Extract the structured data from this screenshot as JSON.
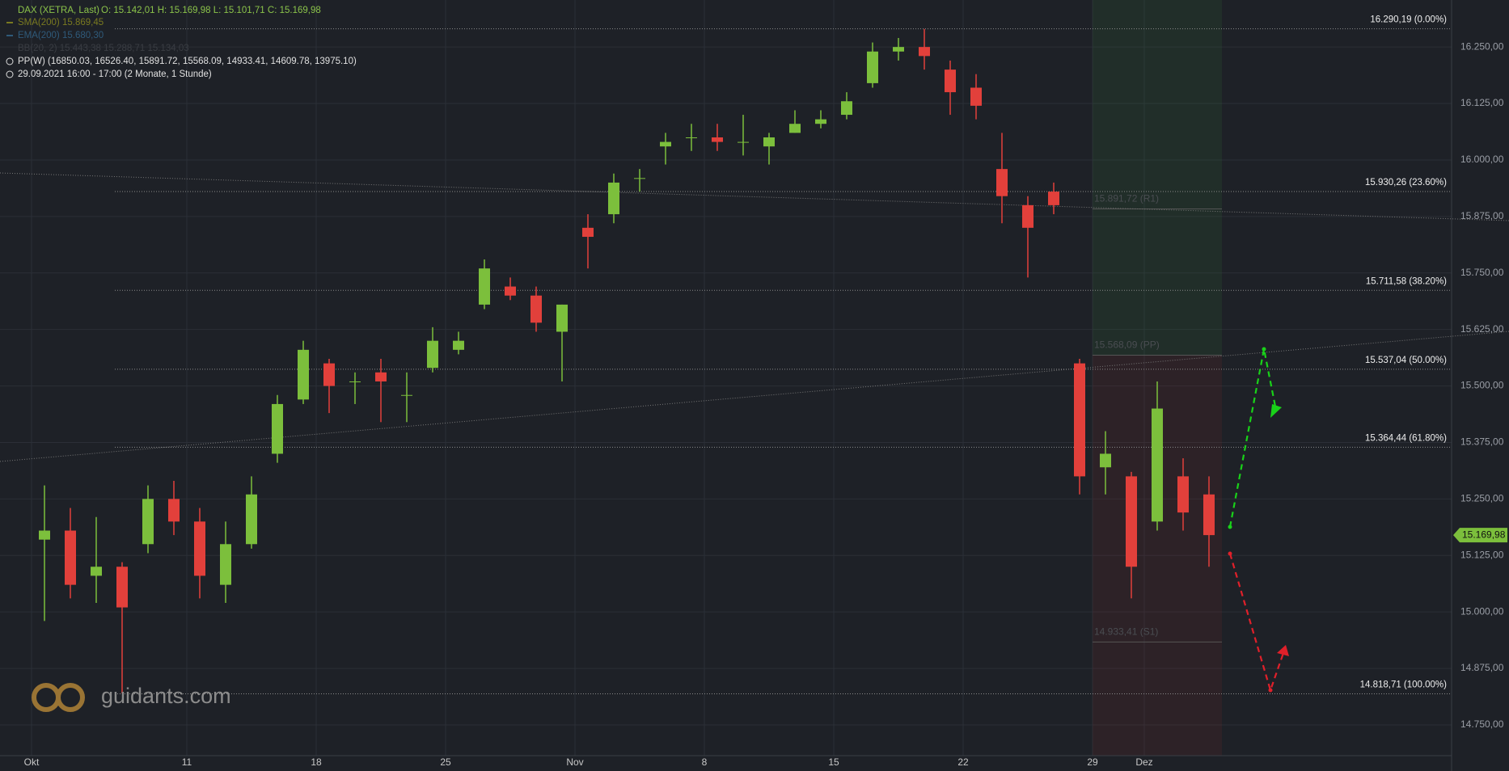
{
  "header": {
    "symbol": "DAX (XETRA, Last)",
    "ohlc": "O: 15.142,01   H: 15.169,98   L: 15.101,71   C: 15.169,98",
    "sma": "SMA(200)  15.869,45",
    "ema": "EMA(200)  15.680,30",
    "bb": "BB(20, 2)  15.443,38  15.288,71  15.134,03",
    "pp": "PP(W)  (16850.03, 16526.40, 15891.72, 15568.09, 14933.41, 14609.78, 13975.10)",
    "period": "29.09.2021 16:00 - 17:00   (2 Monate, 1 Stunde)"
  },
  "watermark": "guidants.com",
  "chart_data": {
    "type": "candlestick",
    "categories": [
      "2021-10-01",
      "2021-10-04",
      "2021-10-05",
      "2021-10-06",
      "2021-10-07",
      "2021-10-08",
      "2021-10-11",
      "2021-10-12",
      "2021-10-13",
      "2021-10-14",
      "2021-10-15",
      "2021-10-18",
      "2021-10-19",
      "2021-10-20",
      "2021-10-21",
      "2021-10-22",
      "2021-10-25",
      "2021-10-26",
      "2021-10-27",
      "2021-10-28",
      "2021-10-29",
      "2021-11-01",
      "2021-11-02",
      "2021-11-03",
      "2021-11-04",
      "2021-11-05",
      "2021-11-08",
      "2021-11-09",
      "2021-11-10",
      "2021-11-11",
      "2021-11-12",
      "2021-11-15",
      "2021-11-16",
      "2021-11-17",
      "2021-11-18",
      "2021-11-19",
      "2021-11-22",
      "2021-11-23",
      "2021-11-24",
      "2021-11-25",
      "2021-11-26",
      "2021-11-29",
      "2021-11-30",
      "2021-12-01",
      "2021-12-02",
      "2021-12-03"
    ],
    "open": [
      15160,
      15180,
      15080,
      15100,
      15150,
      15250,
      15200,
      15060,
      15150,
      15350,
      15470,
      15550,
      15510,
      15530,
      15480,
      15540,
      15580,
      15680,
      15720,
      15700,
      15620,
      15850,
      15880,
      15960,
      16030,
      16050,
      16050,
      16040,
      16030,
      16060,
      16080,
      16100,
      16170,
      16240,
      16250,
      16200,
      16160,
      15980,
      15900,
      15930,
      15550,
      15320,
      15300,
      15200,
      15300,
      15260
    ],
    "high": [
      15280,
      15230,
      15210,
      15110,
      15280,
      15290,
      15230,
      15200,
      15300,
      15480,
      15600,
      15560,
      15530,
      15560,
      15530,
      15630,
      15620,
      15780,
      15740,
      15720,
      15680,
      15880,
      15970,
      15980,
      16060,
      16080,
      16080,
      16100,
      16060,
      16110,
      16110,
      16150,
      16260,
      16270,
      16290,
      16220,
      16190,
      16060,
      15920,
      15950,
      15560,
      15400,
      15310,
      15510,
      15340,
      15300
    ],
    "low": [
      14980,
      15030,
      15020,
      14820,
      15130,
      15170,
      15030,
      15020,
      15140,
      15330,
      15460,
      15440,
      15460,
      15420,
      15420,
      15530,
      15570,
      15670,
      15690,
      15620,
      15510,
      15760,
      15860,
      15930,
      15990,
      16020,
      16020,
      16010,
      15990,
      16060,
      16070,
      16090,
      16160,
      16220,
      16200,
      16100,
      16090,
      15860,
      15740,
      15880,
      15260,
      15260,
      15030,
      15180,
      15180,
      15100
    ],
    "close": [
      15180,
      15060,
      15100,
      15010,
      15250,
      15200,
      15080,
      15150,
      15260,
      15460,
      15580,
      15500,
      15510,
      15510,
      15480,
      15600,
      15600,
      15760,
      15700,
      15640,
      15680,
      15830,
      15950,
      15960,
      16040,
      16050,
      16040,
      16040,
      16050,
      16080,
      16090,
      16130,
      16240,
      16250,
      16230,
      16150,
      16120,
      15920,
      15850,
      15900,
      15300,
      15350,
      15100,
      15450,
      15220,
      15169.98
    ],
    "up_color": "#7cbf3c",
    "down_color": "#e2403b",
    "xticks": [
      {
        "value": "2021-10-01",
        "label": "Okt"
      },
      {
        "value": "2021-10-11",
        "label": "11"
      },
      {
        "value": "2021-10-18",
        "label": "18"
      },
      {
        "value": "2021-10-25",
        "label": "25"
      },
      {
        "value": "2021-11-01",
        "label": "Nov"
      },
      {
        "value": "2021-11-08",
        "label": "8"
      },
      {
        "value": "2021-11-15",
        "label": "15"
      },
      {
        "value": "2021-11-22",
        "label": "22"
      },
      {
        "value": "2021-11-29",
        "label": "29"
      },
      {
        "value": "2021-12-01",
        "label": "Dez"
      }
    ],
    "ylim": [
      14682,
      16354
    ],
    "yticks": [
      {
        "value": 16250,
        "label": "16.250,00"
      },
      {
        "value": 16125,
        "label": "16.125,00"
      },
      {
        "value": 16000,
        "label": "16.000,00"
      },
      {
        "value": 15875,
        "label": "15.875,00"
      },
      {
        "value": 15750,
        "label": "15.750,00"
      },
      {
        "value": 15625,
        "label": "15.625,00"
      },
      {
        "value": 15500,
        "label": "15.500,00"
      },
      {
        "value": 15375,
        "label": "15.375,00"
      },
      {
        "value": 15250,
        "label": "15.250,00"
      },
      {
        "value": 15125,
        "label": "15.125,00"
      },
      {
        "value": 15000,
        "label": "15.000,00"
      },
      {
        "value": 14875,
        "label": "14.875,00"
      },
      {
        "value": 14750,
        "label": "14.750,00"
      }
    ],
    "grid": true,
    "fib_levels": [
      {
        "value": 16290.19,
        "label": "16.290,19 (0.00%)"
      },
      {
        "value": 15930.26,
        "label": "15.930,26 (23.60%)"
      },
      {
        "value": 15711.58,
        "label": "15.711,58 (38.20%)"
      },
      {
        "value": 15537.04,
        "label": "15.537,04 (50.00%)"
      },
      {
        "value": 15364.44,
        "label": "15.364,44 (61.80%)"
      },
      {
        "value": 14818.71,
        "label": "14.818,71 (100.00%)"
      }
    ],
    "pivots": [
      {
        "value": 15891.72,
        "label": "15.891,72 (R1)"
      },
      {
        "value": 15568.09,
        "label": "15.568,09 (PP)"
      },
      {
        "value": 14933.41,
        "label": "14.933,41 (S1)"
      }
    ],
    "last_price": {
      "value": 15169.98,
      "label": "15.169,98"
    }
  }
}
